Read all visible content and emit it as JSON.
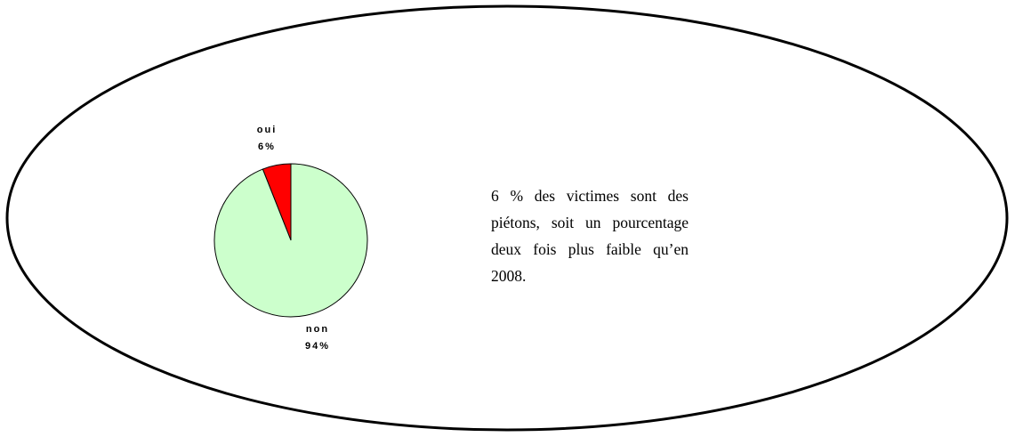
{
  "chart_data": {
    "type": "pie",
    "categories": [
      "oui",
      "non"
    ],
    "values": [
      6,
      94
    ],
    "value_labels": [
      "6%",
      "94%"
    ],
    "colors": [
      "#ff0000",
      "#ccffcc"
    ],
    "annotation": "6 % des victimes sont des piétons, soit un pourcentage deux fois plus faible qu’en 2008."
  }
}
